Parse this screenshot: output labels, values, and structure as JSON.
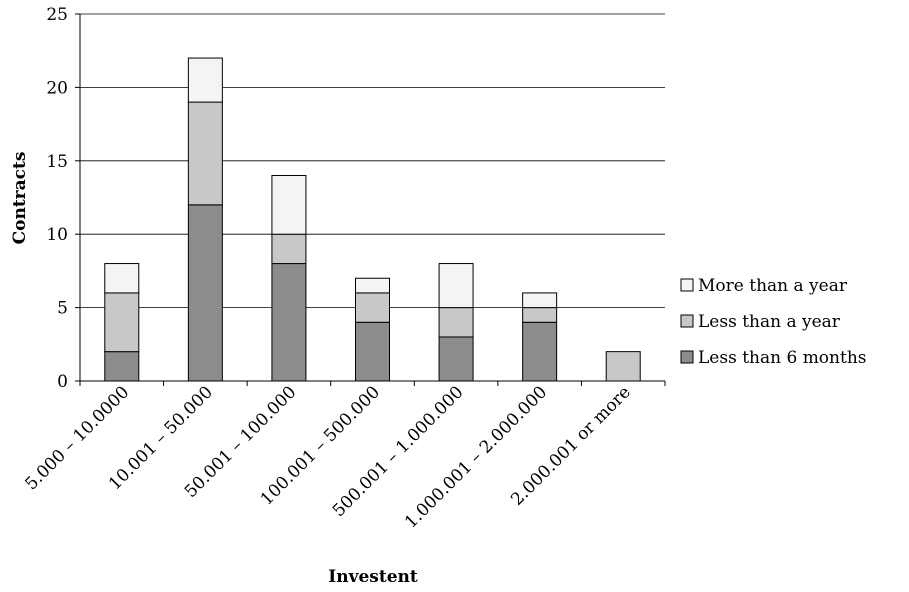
{
  "chart_data": {
    "type": "bar",
    "stacked": true,
    "categories": [
      "5.000 – 10.0000",
      "10.001 – 50.000",
      "50.001 – 100.000",
      "100.001 – 500.000",
      "500.001 – 1.000.000",
      "1.000.001 – 2.000.000",
      "2.000.001 or more"
    ],
    "series": [
      {
        "name": "Less than 6 months",
        "values": [
          2,
          12,
          8,
          4,
          3,
          4,
          0
        ],
        "color": "#8c8c8c"
      },
      {
        "name": "Less than a year",
        "values": [
          4,
          7,
          2,
          2,
          2,
          1,
          2
        ],
        "color": "#c8c8c8"
      },
      {
        "name": "More than a year",
        "values": [
          2,
          3,
          4,
          1,
          3,
          1,
          0
        ],
        "color": "#f4f4f4"
      }
    ],
    "legend_order": [
      "More than a year",
      "Less than a year",
      "Less than 6 months"
    ],
    "legend_position": "right",
    "title": "",
    "xlabel": "Investent",
    "ylabel": "Contracts",
    "ylim": [
      0,
      25
    ],
    "yticks": [
      0,
      5,
      10,
      15,
      20,
      25
    ],
    "grid": "horizontal"
  }
}
